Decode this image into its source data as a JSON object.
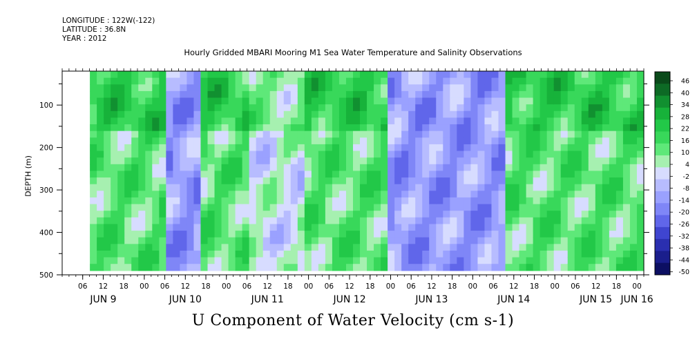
{
  "header": {
    "longitude": "LONGITUDE : 122W(-122)",
    "latitude": "LATITUDE : 36.8N",
    "year": "YEAR : 2012"
  },
  "chart_data": {
    "type": "heatmap",
    "title": "Hourly Gridded MBARI Mooring M1 Sea Water Temperature and Salinity Observations",
    "variable_title": "U Component of Water Velocity (cm s-1)",
    "ylabel": "DEPTH (m)",
    "xlabel": "",
    "ylim": [
      500,
      20
    ],
    "y_ticks": [
      100,
      200,
      300,
      400,
      500
    ],
    "x_hour_ticks": [
      "06",
      "12",
      "18",
      "00",
      "06",
      "12",
      "18",
      "00",
      "06",
      "12",
      "18",
      "00",
      "06",
      "12",
      "18",
      "00",
      "06",
      "12",
      "18",
      "00",
      "06",
      "12",
      "18",
      "00",
      "06",
      "12",
      "18",
      "00",
      "06",
      "12",
      "18",
      "00",
      "06",
      "12",
      "18",
      "00"
    ],
    "x_day_labels": [
      {
        "label": "JUN  9",
        "hour": 12
      },
      {
        "label": "JUN 10",
        "hour": 36
      },
      {
        "label": "JUN 11",
        "hour": 60
      },
      {
        "label": "JUN 12",
        "hour": 84
      },
      {
        "label": "JUN 13",
        "hour": 108
      },
      {
        "label": "JUN 14",
        "hour": 132
      },
      {
        "label": "JUN 15",
        "hour": 156
      },
      {
        "label": "JUN 16",
        "hour": 168
      }
    ],
    "colorbar_levels": [
      "46",
      "40",
      "34",
      "28",
      "22",
      "16",
      "10",
      "4",
      "-2",
      "-8",
      "-14",
      "-20",
      "-26",
      "-32",
      "-38",
      "-44",
      "-50"
    ],
    "colorbar_colors": [
      "#0a4a1a",
      "#0d6a25",
      "#119030",
      "#17b23a",
      "#22c848",
      "#38d85a",
      "#5ee879",
      "#a6f0b0",
      "#d7dcff",
      "#b7bcff",
      "#9aa1ff",
      "#7f86f7",
      "#6066ea",
      "#3f45d0",
      "#2a2fb0",
      "#1a1e8c",
      "#0c0f62"
    ],
    "time_range_hours": [
      0,
      170
    ],
    "features": [
      {
        "t0": 8,
        "t1": 30,
        "regime": "positive"
      },
      {
        "t0": 30,
        "t1": 40,
        "regime": "negative"
      },
      {
        "t0": 40,
        "t1": 55,
        "regime": "positive"
      },
      {
        "t0": 55,
        "t1": 70,
        "regime": "mixed"
      },
      {
        "t0": 70,
        "t1": 95,
        "regime": "positive"
      },
      {
        "t0": 95,
        "t1": 130,
        "regime": "negative"
      },
      {
        "t0": 130,
        "t1": 145,
        "regime": "positive"
      },
      {
        "t0": 145,
        "t1": 170,
        "regime": "positive"
      }
    ]
  }
}
